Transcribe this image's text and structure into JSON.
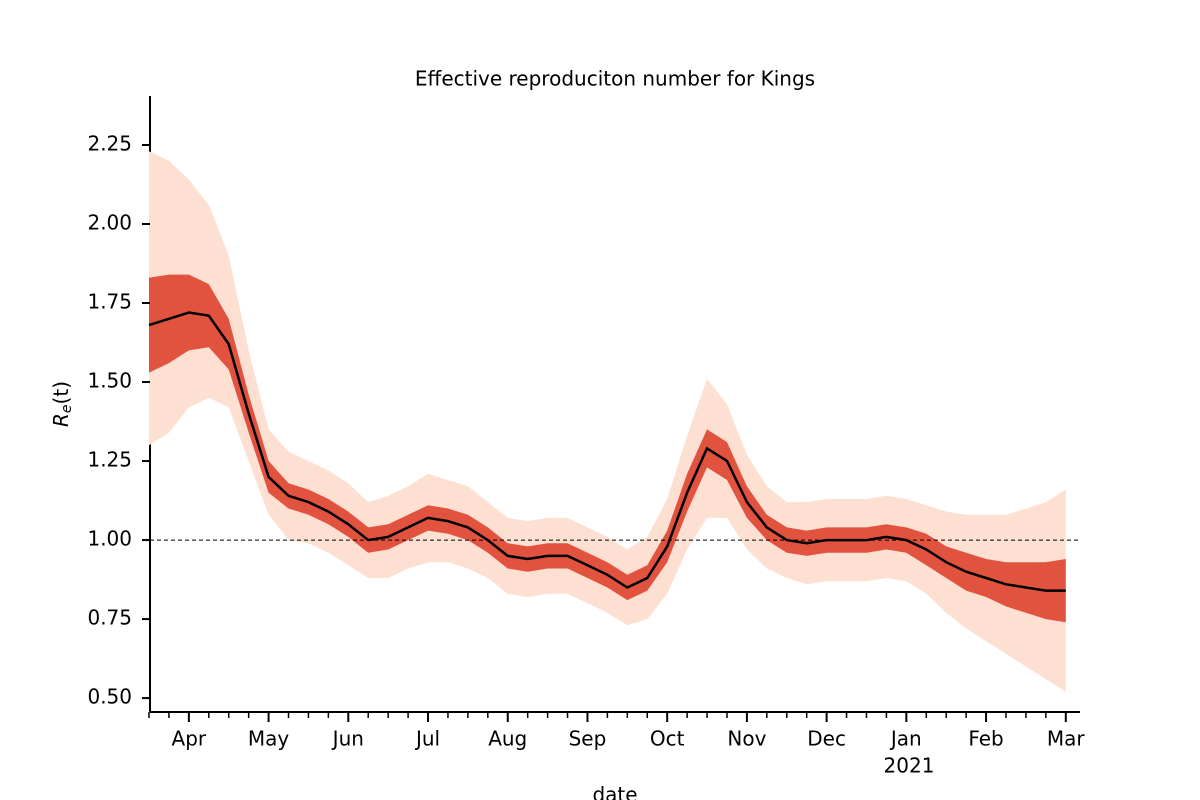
{
  "chart_data": {
    "type": "band-line",
    "title": "Effective reproduciton number for Kings",
    "ylabel": [
      "R",
      "e",
      "(t)"
    ],
    "xlabel": "date",
    "year_label": "2021",
    "categories": [
      null,
      null,
      "Apr",
      null,
      null,
      null,
      "May",
      null,
      null,
      null,
      "Jun",
      null,
      null,
      null,
      "Jul",
      null,
      null,
      null,
      "Aug",
      null,
      null,
      null,
      "Sep",
      null,
      null,
      null,
      "Oct",
      null,
      null,
      null,
      "Nov",
      null,
      null,
      null,
      "Dec",
      null,
      null,
      null,
      "Jan",
      null,
      null,
      null,
      "Feb",
      null,
      null,
      null,
      "Mar"
    ],
    "values": [
      1.68,
      1.7,
      1.72,
      1.71,
      1.62,
      1.4,
      1.2,
      1.14,
      1.12,
      1.09,
      1.05,
      1.0,
      1.01,
      1.04,
      1.07,
      1.06,
      1.04,
      1.0,
      0.95,
      0.94,
      0.95,
      0.95,
      0.92,
      0.89,
      0.85,
      0.88,
      0.98,
      1.15,
      1.29,
      1.25,
      1.12,
      1.04,
      1.0,
      0.99,
      1.0,
      1.0,
      1.0,
      1.01,
      1.0,
      0.97,
      0.93,
      0.9,
      0.88,
      0.86,
      0.85,
      0.84,
      0.84
    ],
    "color": "#000000",
    "bands": [
      {
        "color": "#fde0d2",
        "upper": [
          2.23,
          2.2,
          2.14,
          2.06,
          1.9,
          1.6,
          1.35,
          1.28,
          1.25,
          1.22,
          1.18,
          1.12,
          1.14,
          1.17,
          1.21,
          1.19,
          1.17,
          1.12,
          1.07,
          1.06,
          1.07,
          1.07,
          1.04,
          1.01,
          0.97,
          1.01,
          1.13,
          1.33,
          1.51,
          1.43,
          1.27,
          1.17,
          1.12,
          1.12,
          1.13,
          1.13,
          1.13,
          1.14,
          1.13,
          1.11,
          1.09,
          1.08,
          1.08,
          1.08,
          1.1,
          1.12,
          1.16
        ],
        "lower": [
          1.3,
          1.34,
          1.42,
          1.45,
          1.42,
          1.25,
          1.08,
          1.0,
          0.99,
          0.96,
          0.92,
          0.88,
          0.88,
          0.91,
          0.93,
          0.93,
          0.91,
          0.88,
          0.83,
          0.82,
          0.83,
          0.83,
          0.8,
          0.77,
          0.73,
          0.75,
          0.83,
          0.97,
          1.07,
          1.07,
          0.97,
          0.91,
          0.88,
          0.86,
          0.87,
          0.87,
          0.87,
          0.88,
          0.87,
          0.83,
          0.77,
          0.72,
          0.68,
          0.64,
          0.6,
          0.56,
          0.52
        ]
      },
      {
        "color": "#dc3a26",
        "upper": [
          1.83,
          1.84,
          1.84,
          1.81,
          1.7,
          1.46,
          1.25,
          1.18,
          1.16,
          1.13,
          1.09,
          1.04,
          1.05,
          1.08,
          1.11,
          1.1,
          1.08,
          1.04,
          0.99,
          0.98,
          0.99,
          0.99,
          0.96,
          0.93,
          0.89,
          0.92,
          1.03,
          1.21,
          1.35,
          1.31,
          1.17,
          1.08,
          1.04,
          1.03,
          1.04,
          1.04,
          1.04,
          1.05,
          1.04,
          1.02,
          0.98,
          0.96,
          0.94,
          0.93,
          0.93,
          0.93,
          0.94
        ],
        "lower": [
          1.53,
          1.56,
          1.6,
          1.61,
          1.54,
          1.34,
          1.15,
          1.1,
          1.08,
          1.05,
          1.01,
          0.96,
          0.97,
          1.0,
          1.03,
          1.02,
          1.0,
          0.96,
          0.91,
          0.9,
          0.91,
          0.91,
          0.88,
          0.85,
          0.81,
          0.84,
          0.93,
          1.09,
          1.23,
          1.19,
          1.07,
          1.0,
          0.96,
          0.95,
          0.96,
          0.96,
          0.96,
          0.97,
          0.96,
          0.92,
          0.88,
          0.84,
          0.82,
          0.79,
          0.77,
          0.75,
          0.74
        ]
      }
    ],
    "reference_line": 1,
    "ylim": [
      0.456,
      2.405
    ],
    "yticks": [
      {
        "value": 0.5,
        "label": "0.50"
      },
      {
        "value": 0.75,
        "label": "0.75"
      },
      {
        "value": 1,
        "label": "1.00"
      },
      {
        "value": 1.25,
        "label": "1.25"
      },
      {
        "value": 1.5,
        "label": "1.50"
      },
      {
        "value": 1.75,
        "label": "1.75"
      },
      {
        "value": 2,
        "label": "2.00"
      },
      {
        "value": 2.25,
        "label": "2.25"
      }
    ]
  }
}
